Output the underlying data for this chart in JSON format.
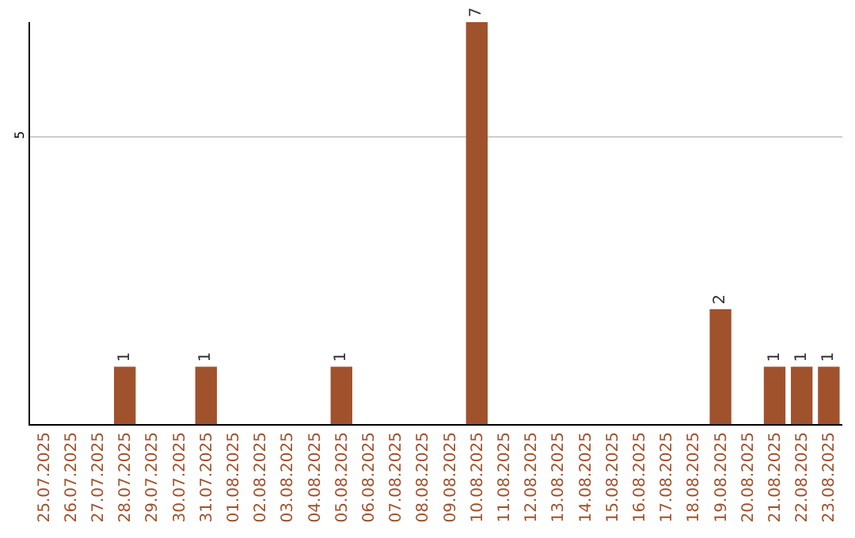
{
  "chart_data": {
    "type": "bar",
    "categories": [
      "25.07.2025",
      "26.07.2025",
      "27.07.2025",
      "28.07.2025",
      "29.07.2025",
      "30.07.2025",
      "31.07.2025",
      "01.08.2025",
      "02.08.2025",
      "03.08.2025",
      "04.08.2025",
      "05.08.2025",
      "06.08.2025",
      "07.08.2025",
      "08.08.2025",
      "09.08.2025",
      "10.08.2025",
      "11.08.2025",
      "12.08.2025",
      "13.08.2025",
      "14.08.2025",
      "15.08.2025",
      "16.08.2025",
      "17.08.2025",
      "18.08.2025",
      "19.08.2025",
      "20.08.2025",
      "21.08.2025",
      "22.08.2025",
      "23.08.2025"
    ],
    "values": [
      0,
      0,
      0,
      1,
      0,
      0,
      1,
      0,
      0,
      0,
      0,
      1,
      0,
      0,
      0,
      0,
      7,
      0,
      0,
      0,
      0,
      0,
      0,
      0,
      0,
      2,
      0,
      1,
      1,
      1
    ],
    "value_labels": [
      null,
      null,
      null,
      "1",
      null,
      null,
      "1",
      null,
      null,
      null,
      null,
      "1",
      null,
      null,
      null,
      null,
      "7",
      null,
      null,
      null,
      null,
      null,
      null,
      null,
      null,
      "2",
      null,
      "1",
      "1",
      "1"
    ],
    "color": "#a0522d",
    "ylim": [
      0,
      7
    ],
    "yticks": [
      5
    ],
    "grid": "y"
  }
}
